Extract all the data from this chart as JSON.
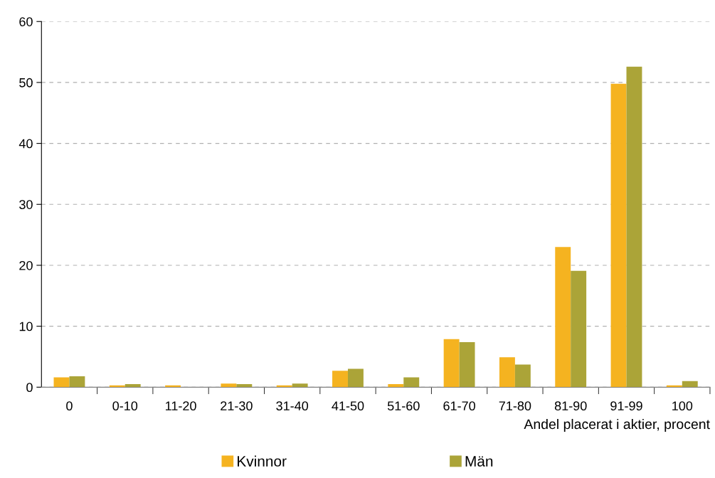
{
  "chart_data": {
    "type": "bar",
    "categories": [
      "0",
      "0-10",
      "11-20",
      "21-30",
      "31-40",
      "41-50",
      "51-60",
      "61-70",
      "71-80",
      "81-90",
      "91-99",
      "100"
    ],
    "xlabel": "Andel placerat i aktier, procent",
    "series": [
      {
        "name": "Kvinnor",
        "color": "#f5b320",
        "values": [
          1.6,
          0.3,
          0.3,
          0.6,
          0.3,
          2.7,
          0.5,
          7.9,
          4.9,
          23.0,
          49.8,
          0.3
        ]
      },
      {
        "name": "Män",
        "color": "#aba438",
        "values": [
          1.8,
          0.5,
          0,
          0.5,
          0.6,
          3.0,
          1.6,
          7.4,
          3.7,
          19.1,
          52.6,
          1.0
        ]
      }
    ],
    "ylim": [
      0,
      60
    ],
    "yticks": [
      0,
      10,
      20,
      30,
      40,
      50,
      60
    ],
    "grid": "y",
    "legend": "bottom"
  }
}
